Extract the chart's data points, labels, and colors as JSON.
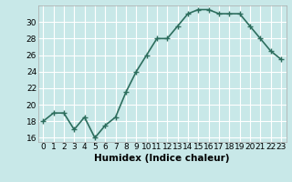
{
  "x": [
    0,
    1,
    2,
    3,
    4,
    5,
    6,
    7,
    8,
    9,
    10,
    11,
    12,
    13,
    14,
    15,
    16,
    17,
    18,
    19,
    20,
    21,
    22,
    23
  ],
  "y": [
    18,
    19,
    19,
    17,
    18.5,
    16,
    17.5,
    18.5,
    21.5,
    24,
    26,
    28,
    28,
    29.5,
    31,
    31.5,
    31.5,
    31,
    31,
    31,
    29.5,
    28,
    26.5,
    25.5
  ],
  "line_color": "#2d6e5e",
  "marker": "+",
  "marker_size": 4,
  "linewidth": 1.2,
  "xlabel": "Humidex (Indice chaleur)",
  "xlim": [
    -0.5,
    23.5
  ],
  "ylim": [
    15.5,
    32
  ],
  "yticks": [
    16,
    18,
    20,
    22,
    24,
    26,
    28,
    30
  ],
  "xticks": [
    0,
    1,
    2,
    3,
    4,
    5,
    6,
    7,
    8,
    9,
    10,
    11,
    12,
    13,
    14,
    15,
    16,
    17,
    18,
    19,
    20,
    21,
    22,
    23
  ],
  "background_color": "#c8e8e8",
  "grid_color": "#ffffff",
  "tick_fontsize": 6.5,
  "label_fontsize": 7.5
}
